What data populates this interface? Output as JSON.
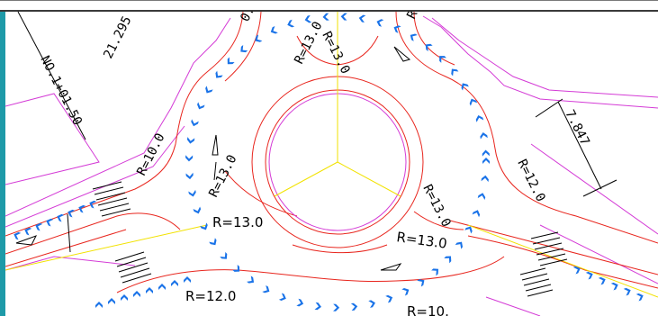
{
  "window": {
    "title": ""
  },
  "dimensions": {
    "d1": "21.295",
    "d2": "7.847",
    "station": "NO.1+01.50"
  },
  "radii": {
    "top_center": "R=13.0",
    "top_left": "R=13.0",
    "top_right_partial": "R=",
    "top_mid_partial": "0.",
    "left_outer": "R=10.0",
    "inner_left": "R=13.0",
    "inner_right": "R=13.0",
    "left_bottom": "R=13.0",
    "bottom_center": "R=13.0",
    "right_outer": "R=12.0",
    "bottom_left_outer": "R=12.0",
    "bottom_right_partial": "R=10."
  },
  "colors": {
    "curb": "#e8261e",
    "boundary": "#d43bd6",
    "centerline": "#f2e200",
    "markers": "#1a73e8",
    "dimension": "#000000",
    "edge": "#1e9aa8"
  }
}
